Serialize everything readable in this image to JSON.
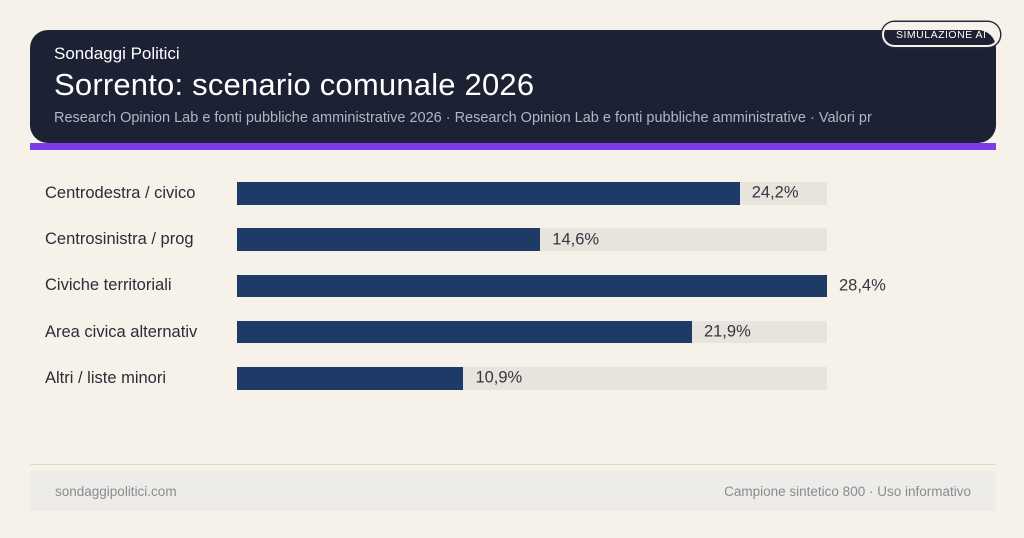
{
  "badge": {
    "label": "SIMULAZIONE AI"
  },
  "header": {
    "brand": "Sondaggi Politici",
    "title": "Sorrento: scenario comunale 2026",
    "subtitle": "Research Opinion Lab e fonti pubbliche amministrative 2026 · Research Opinion Lab e fonti pubbliche amministrative · Valori pr"
  },
  "chart_data": {
    "type": "bar",
    "orientation": "horizontal",
    "title": "Sorrento: scenario comunale 2026",
    "categories": [
      "Centrodestra / civico",
      "Centrosinistra / prog",
      "Civiche territoriali",
      "Area civica alternativ",
      "Altri / liste minori"
    ],
    "values": [
      24.2,
      14.6,
      28.4,
      21.9,
      10.9
    ],
    "value_labels": [
      "24,2%",
      "14,6%",
      "28,4%",
      "21,9%",
      "10,9%"
    ],
    "xlim": [
      0,
      28.4
    ],
    "grid": false,
    "legend": false,
    "bar_color": "#1e3a66",
    "track_color": "#e7e4dd"
  },
  "footer": {
    "left": "sondaggipolitici.com",
    "right": "Campione sintetico 800 · Uso informativo"
  },
  "colors": {
    "page_bg": "#f6f1e9",
    "card_bg": "#1c2133",
    "accent": "#7d3bec",
    "bar": "#1e3a66",
    "track": "#e7e4dd",
    "footer_bg": "#edece8"
  }
}
